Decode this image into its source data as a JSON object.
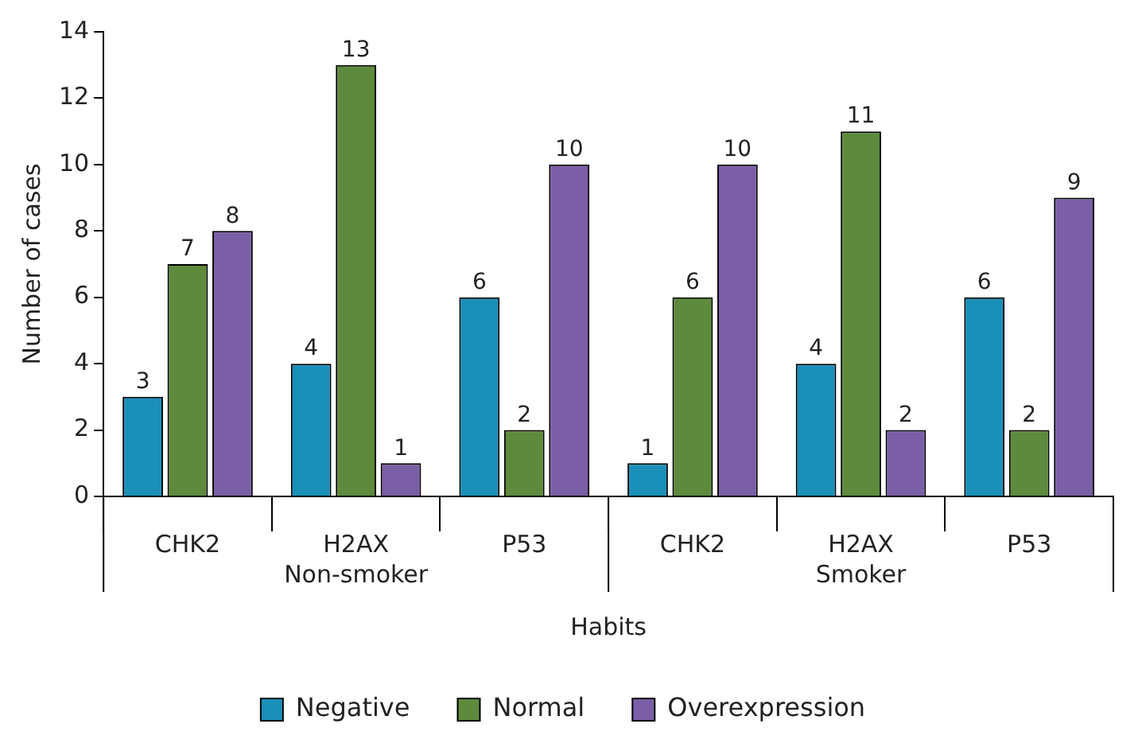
{
  "chart_data": {
    "type": "bar",
    "xlabel": "Habits",
    "ylabel": "Number of cases",
    "categories": [
      "CHK2",
      "H2AX",
      "P53",
      "CHK2",
      "H2AX",
      "P53"
    ],
    "series": [
      {
        "name": "Negative",
        "color": "#1a8fb8",
        "values": [
          3,
          4,
          6,
          1,
          4,
          6
        ]
      },
      {
        "name": "Normal",
        "color": "#5d8a3c",
        "values": [
          7,
          13,
          2,
          6,
          11,
          2
        ]
      },
      {
        "name": "Overexpression",
        "color": "#7a5ea6",
        "values": [
          8,
          1,
          10,
          10,
          2,
          9
        ]
      }
    ],
    "ylim": [
      0,
      14
    ],
    "yticks": [
      0,
      2,
      4,
      6,
      8,
      10,
      12,
      14
    ],
    "data_labels": true,
    "legend": "bottom",
    "annotations": [
      "Non-smoker",
      "Smoker"
    ]
  }
}
